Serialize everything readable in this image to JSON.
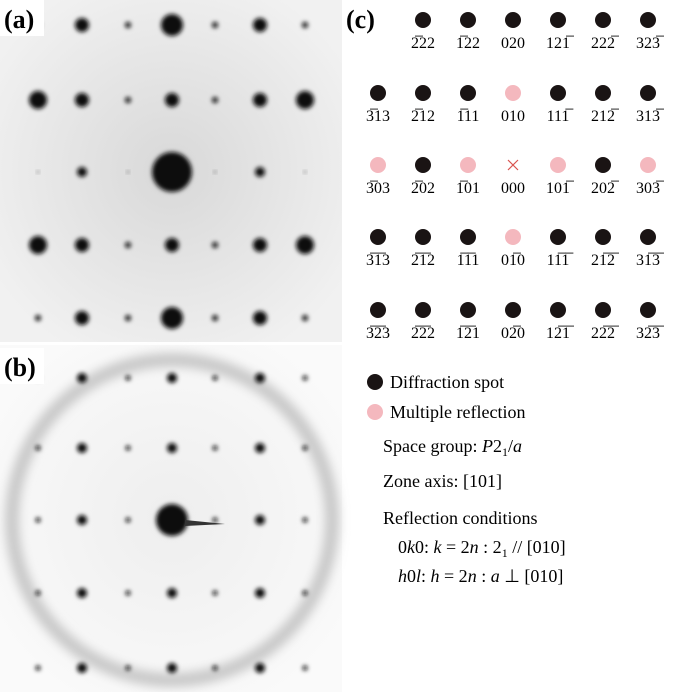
{
  "panels": {
    "a": "(a)",
    "b": "(b)",
    "c": "(c)"
  },
  "grid": {
    "rows": [
      [
        {
          "label": "2̅22",
          "kind": "spot"
        },
        {
          "label": "1̅22",
          "kind": "spot"
        },
        {
          "label": "020",
          "kind": "spot"
        },
        {
          "label": "121̅",
          "kind": "spot"
        },
        {
          "label": "222̅",
          "kind": "spot"
        },
        {
          "label": "323̅",
          "kind": "spot"
        }
      ],
      [
        {
          "label": "3̅13",
          "kind": "spot"
        },
        {
          "label": "2̅12",
          "kind": "spot"
        },
        {
          "label": "1̅11",
          "kind": "spot"
        },
        {
          "label": "010",
          "kind": "multiple"
        },
        {
          "label": "111̅",
          "kind": "spot"
        },
        {
          "label": "212̅",
          "kind": "spot"
        },
        {
          "label": "313̅",
          "kind": "spot"
        }
      ],
      [
        {
          "label": "3̅03",
          "kind": "multiple"
        },
        {
          "label": "2̅02",
          "kind": "spot"
        },
        {
          "label": "1̅01",
          "kind": "multiple"
        },
        {
          "label": "000",
          "kind": "origin"
        },
        {
          "label": "101̅",
          "kind": "multiple"
        },
        {
          "label": "202̅",
          "kind": "spot"
        },
        {
          "label": "303̅",
          "kind": "multiple"
        }
      ],
      [
        {
          "label": "3̅1̅3",
          "kind": "spot"
        },
        {
          "label": "2̅1̅2",
          "kind": "spot"
        },
        {
          "label": "1̅1̅1",
          "kind": "spot"
        },
        {
          "label": "01̅0",
          "kind": "multiple"
        },
        {
          "label": "11̅1̅",
          "kind": "spot"
        },
        {
          "label": "21̅2̅",
          "kind": "spot"
        },
        {
          "label": "31̅3̅",
          "kind": "spot"
        }
      ],
      [
        {
          "label": "3̅2̅3",
          "kind": "spot"
        },
        {
          "label": "2̅2̅2",
          "kind": "spot"
        },
        {
          "label": "1̅2̅1",
          "kind": "spot"
        },
        {
          "label": "02̅0",
          "kind": "spot"
        },
        {
          "label": "12̅1̅",
          "kind": "spot"
        },
        {
          "label": "22̅2̅",
          "kind": "spot"
        },
        {
          "label": "32̅3̅",
          "kind": "spot"
        }
      ]
    ]
  },
  "legend": [
    {
      "text": "Diffraction spot",
      "color": "#1a1414"
    },
    {
      "text": "Multiple reflection",
      "color": "#f4b8be"
    }
  ],
  "info": {
    "space_group": [
      {
        "t": "Space group: ",
        "s": ""
      },
      {
        "t": "P",
        "s": "i"
      },
      {
        "t": "2",
        "s": ""
      },
      {
        "t": "1",
        "s": "sub"
      },
      {
        "t": "/",
        "s": ""
      },
      {
        "t": "a",
        "s": "i"
      }
    ],
    "zone_axis": [
      {
        "t": "Zone axis: [101]",
        "s": ""
      }
    ],
    "conditions_title": [
      {
        "t": "Reflection conditions",
        "s": ""
      }
    ],
    "cond1": [
      {
        "t": "0",
        "s": ""
      },
      {
        "t": "k",
        "s": "i"
      },
      {
        "t": "0: ",
        "s": ""
      },
      {
        "t": "k",
        "s": "i"
      },
      {
        "t": " = 2",
        "s": ""
      },
      {
        "t": "n",
        "s": "i"
      },
      {
        "t": " : 2",
        "s": ""
      },
      {
        "t": "1",
        "s": "sub"
      },
      {
        "t": " // [010]",
        "s": ""
      }
    ],
    "cond2": [
      {
        "t": "h",
        "s": "i"
      },
      {
        "t": "0",
        "s": ""
      },
      {
        "t": "l",
        "s": "i"
      },
      {
        "t": ": ",
        "s": ""
      },
      {
        "t": "h",
        "s": "i"
      },
      {
        "t": " = 2",
        "s": ""
      },
      {
        "t": "n",
        "s": "i"
      },
      {
        "t": " : ",
        "s": ""
      },
      {
        "t": "a",
        "s": "i"
      },
      {
        "t": " ⊥ [010]",
        "s": ""
      }
    ]
  }
}
